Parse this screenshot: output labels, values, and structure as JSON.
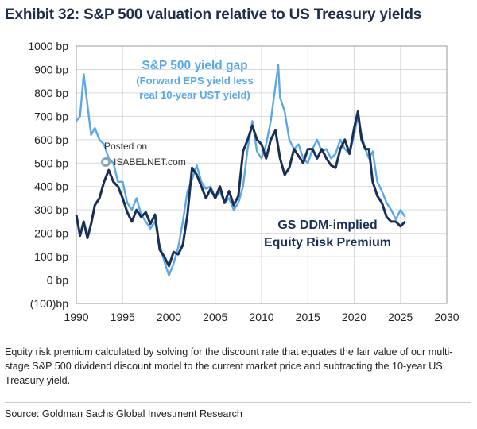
{
  "title": "Exhibit 32: S&P 500 valuation relative to US Treasury yields",
  "footnote": "Equity risk premium calculated by solving for the discount rate that equates the fair value of our multi-stage S&P 500 dividend discount model to the current market price and subtracting the 10-year US Treasury yield.",
  "source": "Source: Goldman Sachs Global Investment Research",
  "watermark": {
    "line1": "Posted on",
    "line2": "ISABELNET.com"
  },
  "colors": {
    "yield_gap": "#5aa9e6",
    "erp": "#1a2f57",
    "grid": "#d9d9d9"
  },
  "chart_data": {
    "type": "line",
    "title": "S&P 500 valuation relative to US Treasury yields",
    "xlabel": "",
    "ylabel": "",
    "xlim": [
      1990,
      2030
    ],
    "ylim": [
      -100,
      1000
    ],
    "x_ticks": [
      1990,
      1995,
      2000,
      2005,
      2010,
      2015,
      2020,
      2025,
      2030
    ],
    "x_tick_labels": [
      "1990",
      "1995",
      "2000",
      "2005",
      "2010",
      "2015",
      "2020",
      "2025",
      "2030"
    ],
    "y_ticks": [
      -100,
      0,
      100,
      200,
      300,
      400,
      500,
      600,
      700,
      800,
      900,
      1000
    ],
    "y_tick_labels": [
      "(100)bp",
      "0 bp",
      "100 bp",
      "200 bp",
      "300 bp",
      "400 bp",
      "500 bp",
      "600 bp",
      "700 bp",
      "800 bp",
      "900 bp",
      "1000 bp"
    ],
    "annotations": {
      "yield_gap_title": "S&P 500 yield gap",
      "yield_gap_sub1": "(Forward EPS yield less",
      "yield_gap_sub2": "real 10-year UST yield)",
      "erp_line1": "GS DDM-implied",
      "erp_line2": "Equity Risk Premium"
    },
    "series": [
      {
        "name": "S&P 500 yield gap",
        "x": [
          1990.0,
          1990.4,
          1990.8,
          1991.2,
          1991.6,
          1992.0,
          1992.5,
          1993.0,
          1993.5,
          1994.0,
          1994.5,
          1995.0,
          1995.5,
          1996.0,
          1996.5,
          1997.0,
          1997.5,
          1998.0,
          1998.5,
          1999.0,
          1999.5,
          2000.0,
          2000.5,
          2001.0,
          2001.5,
          2002.0,
          2002.5,
          2003.0,
          2003.5,
          2004.0,
          2004.5,
          2005.0,
          2005.5,
          2006.0,
          2006.5,
          2007.0,
          2007.5,
          2008.0,
          2008.5,
          2009.0,
          2009.5,
          2010.0,
          2010.5,
          2011.0,
          2011.5,
          2011.8,
          2012.0,
          2012.5,
          2013.0,
          2013.5,
          2014.0,
          2014.5,
          2015.0,
          2015.5,
          2016.0,
          2016.5,
          2017.0,
          2017.5,
          2018.0,
          2018.5,
          2019.0,
          2019.5,
          2020.0,
          2020.4,
          2020.8,
          2021.2,
          2021.6,
          2022.0,
          2022.5,
          2023.0,
          2023.5,
          2024.0,
          2024.5,
          2025.0,
          2025.5
        ],
        "values": [
          680,
          700,
          880,
          750,
          620,
          650,
          600,
          580,
          520,
          500,
          420,
          420,
          330,
          300,
          350,
          280,
          250,
          220,
          250,
          150,
          80,
          20,
          70,
          140,
          250,
          380,
          430,
          490,
          420,
          390,
          400,
          350,
          380,
          330,
          350,
          300,
          330,
          400,
          560,
          680,
          550,
          520,
          580,
          680,
          830,
          920,
          780,
          720,
          600,
          560,
          580,
          520,
          500,
          560,
          600,
          550,
          560,
          520,
          540,
          600,
          560,
          540,
          620,
          700,
          620,
          560,
          520,
          550,
          420,
          380,
          330,
          300,
          260,
          300,
          270
        ]
      },
      {
        "name": "GS DDM-implied Equity Risk Premium",
        "x": [
          1990.0,
          1990.4,
          1990.8,
          1991.2,
          1991.6,
          1992.0,
          1992.5,
          1993.0,
          1993.5,
          1994.0,
          1994.5,
          1995.0,
          1995.5,
          1996.0,
          1996.5,
          1997.0,
          1997.5,
          1998.0,
          1998.5,
          1999.0,
          1999.5,
          2000.0,
          2000.5,
          2001.0,
          2001.5,
          2002.0,
          2002.5,
          2003.0,
          2003.5,
          2004.0,
          2004.5,
          2005.0,
          2005.5,
          2006.0,
          2006.5,
          2007.0,
          2007.5,
          2008.0,
          2008.5,
          2009.0,
          2009.5,
          2010.0,
          2010.5,
          2011.0,
          2011.5,
          2012.0,
          2012.5,
          2013.0,
          2013.5,
          2014.0,
          2014.5,
          2015.0,
          2015.5,
          2016.0,
          2016.5,
          2017.0,
          2017.5,
          2018.0,
          2018.5,
          2019.0,
          2019.5,
          2020.0,
          2020.4,
          2020.8,
          2021.2,
          2021.6,
          2022.0,
          2022.5,
          2023.0,
          2023.5,
          2024.0,
          2024.5,
          2025.0,
          2025.5
        ],
        "values": [
          280,
          190,
          250,
          180,
          240,
          320,
          350,
          420,
          470,
          420,
          400,
          350,
          290,
          250,
          300,
          270,
          290,
          240,
          280,
          130,
          100,
          60,
          120,
          110,
          150,
          280,
          480,
          450,
          400,
          350,
          390,
          350,
          400,
          330,
          380,
          320,
          360,
          550,
          600,
          660,
          600,
          580,
          520,
          600,
          640,
          520,
          450,
          480,
          560,
          530,
          500,
          560,
          560,
          520,
          560,
          520,
          490,
          480,
          560,
          600,
          540,
          650,
          720,
          600,
          560,
          560,
          420,
          360,
          330,
          270,
          250,
          250,
          230,
          250
        ]
      }
    ]
  }
}
